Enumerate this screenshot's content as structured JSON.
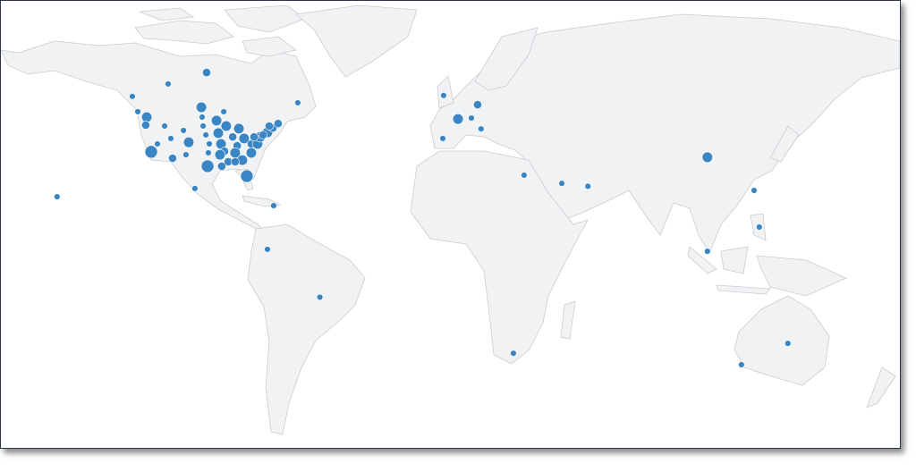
{
  "map": {
    "projection": "equirectangular",
    "land_color": "#f1f2f4",
    "border_color": "#c9ccd1",
    "bubble_color": "#3a85c3",
    "bubbles": [
      {
        "lon": -97.6,
        "lat": 60.0,
        "value": 2
      },
      {
        "lon": -113.1,
        "lat": 56.4,
        "value": 1
      },
      {
        "lon": -127.5,
        "lat": 52.5,
        "value": 1
      },
      {
        "lon": -125.3,
        "lat": 47.7,
        "value": 1
      },
      {
        "lon": -121.7,
        "lat": 46.0,
        "value": 3
      },
      {
        "lon": -122.1,
        "lat": 43.5,
        "value": 2
      },
      {
        "lon": -99.7,
        "lat": 49.1,
        "value": 3
      },
      {
        "lon": -90.7,
        "lat": 47.7,
        "value": 1
      },
      {
        "lon": -99.4,
        "lat": 46.0,
        "value": 1
      },
      {
        "lon": -93.6,
        "lat": 44.9,
        "value": 3
      },
      {
        "lon": -99.0,
        "lat": 43.2,
        "value": 1
      },
      {
        "lon": -89.7,
        "lat": 43.2,
        "value": 3
      },
      {
        "lon": -114.5,
        "lat": 43.2,
        "value": 1
      },
      {
        "lon": -106.9,
        "lat": 41.8,
        "value": 1
      },
      {
        "lon": -84.6,
        "lat": 42.4,
        "value": 3
      },
      {
        "lon": -117.4,
        "lat": 37.6,
        "value": 1
      },
      {
        "lon": -112.0,
        "lat": 39.3,
        "value": 1
      },
      {
        "lon": -104.8,
        "lat": 38.1,
        "value": 3
      },
      {
        "lon": -97.9,
        "lat": 40.4,
        "value": 1
      },
      {
        "lon": -92.9,
        "lat": 41.0,
        "value": 3
      },
      {
        "lon": -87.1,
        "lat": 39.8,
        "value": 2
      },
      {
        "lon": -82.5,
        "lat": 39.3,
        "value": 3
      },
      {
        "lon": -96.5,
        "lat": 37.6,
        "value": 1
      },
      {
        "lon": -91.8,
        "lat": 37.6,
        "value": 3
      },
      {
        "lon": -85.3,
        "lat": 37.0,
        "value": 2
      },
      {
        "lon": -79.6,
        "lat": 37.6,
        "value": 2
      },
      {
        "lon": -119.9,
        "lat": 35.1,
        "value": 4
      },
      {
        "lon": -105.9,
        "lat": 34.2,
        "value": 1
      },
      {
        "lon": -96.9,
        "lat": 34.8,
        "value": 1
      },
      {
        "lon": -90.4,
        "lat": 35.3,
        "value": 2
      },
      {
        "lon": -86.1,
        "lat": 34.8,
        "value": 3
      },
      {
        "lon": -111.3,
        "lat": 33.1,
        "value": 2
      },
      {
        "lon": -97.2,
        "lat": 30.6,
        "value": 4
      },
      {
        "lon": -92.2,
        "lat": 34.2,
        "value": 3
      },
      {
        "lon": -88.9,
        "lat": 32.0,
        "value": 2
      },
      {
        "lon": -83.2,
        "lat": 32.5,
        "value": 3
      },
      {
        "lon": -79.6,
        "lat": 34.8,
        "value": 3
      },
      {
        "lon": -77.1,
        "lat": 37.6,
        "value": 3
      },
      {
        "lon": -76.0,
        "lat": 39.8,
        "value": 3
      },
      {
        "lon": -73.1,
        "lat": 41.2,
        "value": 3
      },
      {
        "lon": -70.9,
        "lat": 42.6,
        "value": 2
      },
      {
        "lon": -72.4,
        "lat": 43.2,
        "value": 2
      },
      {
        "lon": -68.8,
        "lat": 44.0,
        "value": 2
      },
      {
        "lon": -74.9,
        "lat": 40.4,
        "value": 2
      },
      {
        "lon": -78.5,
        "lat": 39.8,
        "value": 2
      },
      {
        "lon": -91.5,
        "lat": 30.6,
        "value": 2
      },
      {
        "lon": -86.1,
        "lat": 32.0,
        "value": 2
      },
      {
        "lon": -81.4,
        "lat": 27.5,
        "value": 4
      },
      {
        "lon": -60.9,
        "lat": 50.5,
        "value": 1
      },
      {
        "lon": -102.3,
        "lat": 23.6,
        "value": 1
      },
      {
        "lon": -70.6,
        "lat": 18.2,
        "value": 1
      },
      {
        "lon": -157.8,
        "lat": 21.0,
        "value": 1
      },
      {
        "lon": -73.1,
        "lat": 4.5,
        "value": 1
      },
      {
        "lon": -52.0,
        "lat": -10.5,
        "value": 1
      },
      {
        "lon": -2.2,
        "lat": 52.8,
        "value": 1
      },
      {
        "lon": 3.6,
        "lat": 45.4,
        "value": 3
      },
      {
        "lon": 11.5,
        "lat": 49.9,
        "value": 2
      },
      {
        "lon": 9.0,
        "lat": 45.7,
        "value": 1
      },
      {
        "lon": 12.9,
        "lat": 42.3,
        "value": 1
      },
      {
        "lon": -2.5,
        "lat": 39.3,
        "value": 1
      },
      {
        "lon": 30.2,
        "lat": 27.8,
        "value": 1
      },
      {
        "lon": 45.4,
        "lat": 25.2,
        "value": 1
      },
      {
        "lon": 55.9,
        "lat": 24.3,
        "value": 1
      },
      {
        "lon": 104.0,
        "lat": 33.4,
        "value": 3
      },
      {
        "lon": 122.8,
        "lat": 23.0,
        "value": 1
      },
      {
        "lon": 124.9,
        "lat": 11.5,
        "value": 1
      },
      {
        "lon": 104.0,
        "lat": 3.9,
        "value": 1
      },
      {
        "lon": 25.9,
        "lat": -28.1,
        "value": 1
      },
      {
        "lon": 136.4,
        "lat": -25.0,
        "value": 1
      },
      {
        "lon": 117.7,
        "lat": -31.7,
        "value": 1
      }
    ]
  }
}
